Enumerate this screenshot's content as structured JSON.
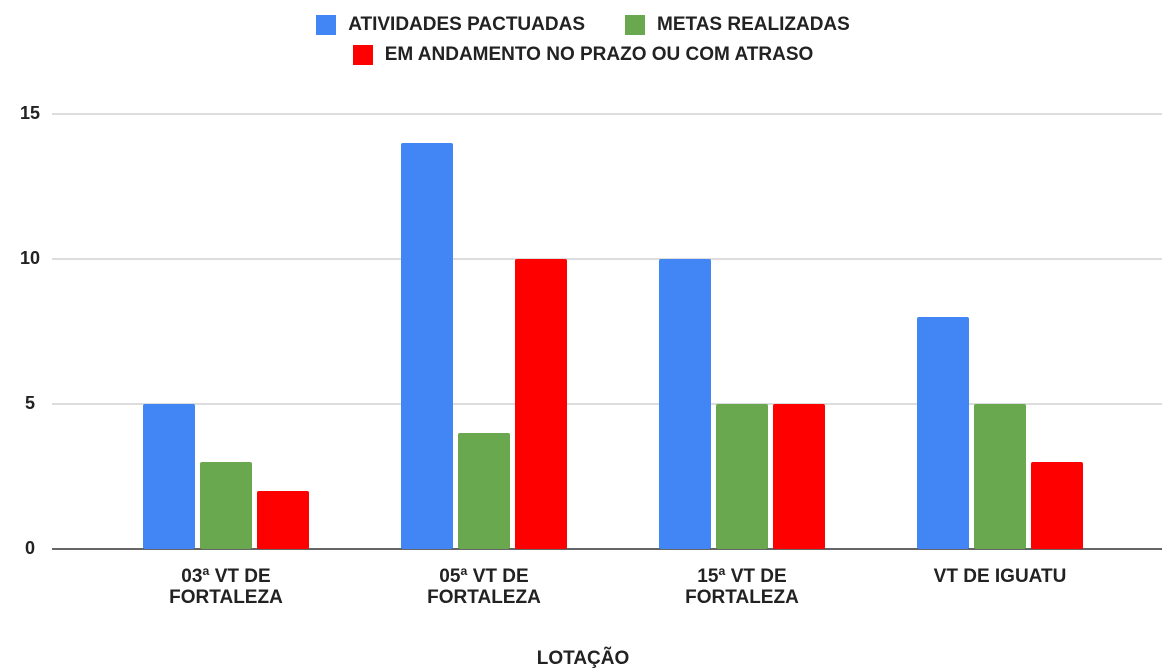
{
  "chart_data": {
    "type": "bar",
    "categories": [
      "03ª VT DE FORTALEZA",
      "05ª VT DE FORTALEZA",
      "15ª VT DE FORTALEZA",
      "VT DE IGUATU"
    ],
    "series": [
      {
        "name": "ATIVIDADES PACTUADAS",
        "color": "#4285f4",
        "values": [
          5,
          14,
          10,
          8
        ]
      },
      {
        "name": "METAS REALIZADAS",
        "color": "#6aa84f",
        "values": [
          3,
          4,
          5,
          5
        ]
      },
      {
        "name": "EM ANDAMENTO NO PRAZO OU COM ATRASO",
        "color": "#ff0000",
        "values": [
          2,
          10,
          5,
          3
        ]
      }
    ],
    "x_label": "LOTAÇÃO",
    "ylim": [
      0,
      15
    ],
    "yticks": [
      0,
      5,
      10,
      15
    ],
    "grid": true,
    "legend": "top"
  }
}
